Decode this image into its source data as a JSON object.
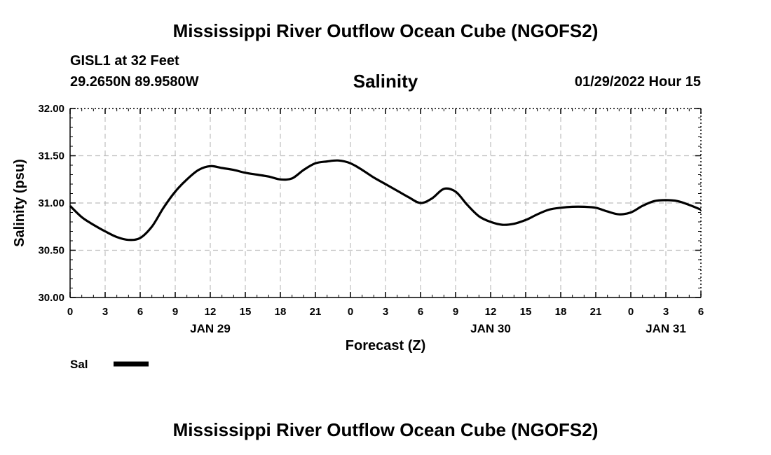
{
  "header": {
    "title": "Mississippi River Outflow Ocean Cube (NGOFS2)",
    "station": "GISL1 at 32 Feet",
    "coords": "29.2650N  89.9580W",
    "subtitle": "Salinity",
    "datetime": "01/29/2022 Hour 15"
  },
  "footer": {
    "title": "Mississippi River Outflow Ocean Cube (NGOFS2)"
  },
  "colors": {
    "line": "#000000",
    "grid": "#bdbdbd",
    "background": "#ffffff"
  },
  "chart_data": {
    "type": "line",
    "title": "Salinity",
    "xlabel": "Forecast (Z)",
    "ylabel": "Salinity (psu)",
    "xlim": [
      0,
      54
    ],
    "ylim": [
      30.0,
      32.0
    ],
    "y_ticks": [
      30.0,
      30.5,
      31.0,
      31.5,
      32.0
    ],
    "y_tick_labels": [
      "30.00",
      "30.50",
      "31.00",
      "31.50",
      "32.00"
    ],
    "x_ticks": [
      0,
      3,
      6,
      9,
      12,
      15,
      18,
      21,
      24,
      27,
      30,
      33,
      36,
      39,
      42,
      45,
      48,
      51,
      54
    ],
    "x_tick_labels": [
      "0",
      "3",
      "6",
      "9",
      "12",
      "15",
      "18",
      "21",
      "0",
      "3",
      "6",
      "9",
      "12",
      "15",
      "18",
      "21",
      "0",
      "3",
      "6"
    ],
    "date_labels": [
      {
        "x": 12,
        "label": "JAN 29"
      },
      {
        "x": 36,
        "label": "JAN 30"
      },
      {
        "x": 51,
        "label": "JAN 31"
      }
    ],
    "grid": true,
    "legend": [
      {
        "name": "Sal",
        "placement": "bottom-left"
      }
    ],
    "series": [
      {
        "name": "Sal",
        "x": [
          0,
          1,
          2,
          3,
          4,
          5,
          6,
          7,
          8,
          9,
          10,
          11,
          12,
          13,
          14,
          15,
          16,
          17,
          18,
          19,
          20,
          21,
          22,
          23,
          24,
          25,
          26,
          27,
          28,
          29,
          30,
          31,
          32,
          33,
          34,
          35,
          36,
          37,
          38,
          39,
          40,
          41,
          42,
          43,
          44,
          45,
          46,
          47,
          48,
          49,
          50,
          51,
          52,
          53,
          54
        ],
        "y": [
          30.97,
          30.85,
          30.77,
          30.7,
          30.64,
          30.61,
          30.63,
          30.75,
          30.95,
          31.12,
          31.25,
          31.35,
          31.39,
          31.37,
          31.35,
          31.32,
          31.3,
          31.28,
          31.25,
          31.26,
          31.35,
          31.42,
          31.44,
          31.45,
          31.42,
          31.35,
          31.27,
          31.2,
          31.13,
          31.06,
          31.0,
          31.05,
          31.15,
          31.12,
          30.98,
          30.86,
          30.8,
          30.77,
          30.78,
          30.82,
          30.88,
          30.93,
          30.95,
          30.96,
          30.96,
          30.95,
          30.91,
          30.88,
          30.9,
          30.97,
          31.02,
          31.03,
          31.02,
          30.98,
          30.93
        ]
      }
    ]
  }
}
